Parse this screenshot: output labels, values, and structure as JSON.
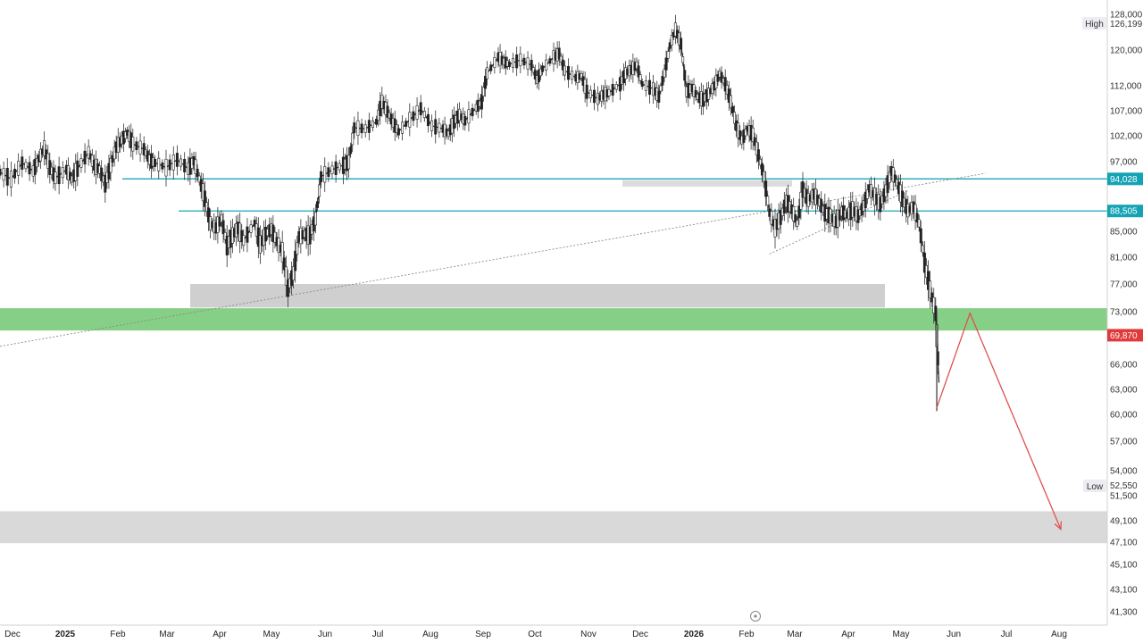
{
  "chart_data": {
    "type": "candlestick",
    "instrument_hint": "",
    "price_axis": {
      "ticks": [
        "128,000",
        "120,000",
        "112,000",
        "107,000",
        "102,000",
        "97,000",
        "85,000",
        "81,000",
        "77,000",
        "73,000",
        "66,000",
        "63,000",
        "60,000",
        "57,000",
        "54,000",
        "51,500",
        "49,100",
        "47,100",
        "45,100",
        "43,100",
        "41,300"
      ],
      "ylim": [
        40000,
        129000
      ]
    },
    "time_axis": {
      "ticks": [
        "Dec",
        "2025",
        "Feb",
        "Mar",
        "Apr",
        "May",
        "Jun",
        "Jul",
        "Aug",
        "Sep",
        "Oct",
        "Nov",
        "Dec",
        "2026",
        "Feb",
        "Mar",
        "Apr",
        "May",
        "Jun",
        "Jul",
        "Aug"
      ],
      "bold_ticks": [
        "2025",
        "2026"
      ]
    },
    "markers": {
      "high": {
        "label": "High",
        "value": "126,199"
      },
      "low": {
        "label": "Low",
        "value": "52,550"
      }
    },
    "price_tags": [
      {
        "value": "94,028",
        "color": "#14a3b5"
      },
      {
        "value": "88,505",
        "color": "#14a3b5"
      },
      {
        "value": "69,870",
        "color": "#e03a3a"
      }
    ],
    "horizontal_lines": [
      {
        "price": 94028,
        "color": "#1aa6b7"
      },
      {
        "price": 88505,
        "color": "#1aa6b7"
      }
    ],
    "zones": [
      {
        "name": "resistance zone (grey)",
        "from": 73600,
        "to": 77000,
        "color": "#cfcfcf"
      },
      {
        "name": "support zone (green)",
        "from": 70500,
        "to": 73500,
        "color": "#86cf86"
      },
      {
        "name": "target zone (grey)",
        "from": 47000,
        "to": 50000,
        "color": "#d9d9d9"
      },
      {
        "name": "small consolidation box",
        "from": 92700,
        "to": 93800,
        "color": "#dcdcdc"
      }
    ],
    "projection": {
      "color": "#e05050",
      "points": [
        [
          0.846,
          60800
        ],
        [
          0.876,
          72800
        ],
        [
          0.958,
          48300
        ]
      ]
    },
    "price_path": [
      [
        0.0,
        95200
      ],
      [
        0.01,
        94000
      ],
      [
        0.02,
        96800
      ],
      [
        0.03,
        95400
      ],
      [
        0.035,
        97600
      ],
      [
        0.04,
        99600
      ],
      [
        0.045,
        96000
      ],
      [
        0.05,
        94200
      ],
      [
        0.06,
        95600
      ],
      [
        0.065,
        94000
      ],
      [
        0.07,
        95800
      ],
      [
        0.08,
        98800
      ],
      [
        0.085,
        96400
      ],
      [
        0.09,
        95600
      ],
      [
        0.095,
        93200
      ],
      [
        0.1,
        96400
      ],
      [
        0.105,
        99800
      ],
      [
        0.11,
        101200
      ],
      [
        0.115,
        102600
      ],
      [
        0.12,
        100400
      ],
      [
        0.13,
        99400
      ],
      [
        0.135,
        97400
      ],
      [
        0.14,
        96800
      ],
      [
        0.15,
        96000
      ],
      [
        0.16,
        97400
      ],
      [
        0.17,
        95800
      ],
      [
        0.175,
        97200
      ],
      [
        0.18,
        94000
      ],
      [
        0.185,
        90600
      ],
      [
        0.19,
        86400
      ],
      [
        0.195,
        85600
      ],
      [
        0.2,
        87200
      ],
      [
        0.205,
        82800
      ],
      [
        0.21,
        84400
      ],
      [
        0.215,
        85600
      ],
      [
        0.22,
        83600
      ],
      [
        0.23,
        86400
      ],
      [
        0.235,
        83000
      ],
      [
        0.24,
        84600
      ],
      [
        0.245,
        85400
      ],
      [
        0.25,
        83400
      ],
      [
        0.255,
        81800
      ],
      [
        0.26,
        76400
      ],
      [
        0.265,
        78600
      ],
      [
        0.27,
        84200
      ],
      [
        0.275,
        84600
      ],
      [
        0.28,
        84400
      ],
      [
        0.285,
        87200
      ],
      [
        0.29,
        94400
      ],
      [
        0.3,
        95600
      ],
      [
        0.31,
        96400
      ],
      [
        0.315,
        97000
      ],
      [
        0.32,
        103600
      ],
      [
        0.33,
        103400
      ],
      [
        0.34,
        104800
      ],
      [
        0.345,
        108800
      ],
      [
        0.35,
        106800
      ],
      [
        0.355,
        104600
      ],
      [
        0.36,
        102800
      ],
      [
        0.37,
        105200
      ],
      [
        0.38,
        107400
      ],
      [
        0.39,
        104000
      ],
      [
        0.4,
        103400
      ],
      [
        0.405,
        102400
      ],
      [
        0.41,
        104800
      ],
      [
        0.415,
        106200
      ],
      [
        0.42,
        105000
      ],
      [
        0.43,
        107600
      ],
      [
        0.435,
        108800
      ],
      [
        0.44,
        114800
      ],
      [
        0.45,
        118400
      ],
      [
        0.455,
        117400
      ],
      [
        0.46,
        116800
      ],
      [
        0.47,
        117800
      ],
      [
        0.48,
        116600
      ],
      [
        0.485,
        113400
      ],
      [
        0.49,
        115800
      ],
      [
        0.5,
        118400
      ],
      [
        0.505,
        119200
      ],
      [
        0.51,
        115400
      ],
      [
        0.52,
        113800
      ],
      [
        0.525,
        114200
      ],
      [
        0.53,
        110800
      ],
      [
        0.54,
        109400
      ],
      [
        0.545,
        110200
      ],
      [
        0.55,
        110600
      ],
      [
        0.56,
        112400
      ],
      [
        0.565,
        114800
      ],
      [
        0.57,
        115600
      ],
      [
        0.575,
        116600
      ],
      [
        0.58,
        112400
      ],
      [
        0.59,
        111400
      ],
      [
        0.595,
        109800
      ],
      [
        0.6,
        114800
      ],
      [
        0.605,
        121000
      ],
      [
        0.61,
        124600
      ],
      [
        0.615,
        121400
      ],
      [
        0.62,
        110800
      ],
      [
        0.625,
        111600
      ],
      [
        0.63,
        109800
      ],
      [
        0.635,
        109200
      ],
      [
        0.64,
        110400
      ],
      [
        0.645,
        112000
      ],
      [
        0.65,
        114600
      ],
      [
        0.655,
        112400
      ],
      [
        0.66,
        108800
      ],
      [
        0.665,
        104000
      ],
      [
        0.67,
        101200
      ],
      [
        0.675,
        103400
      ],
      [
        0.68,
        102200
      ],
      [
        0.685,
        98200
      ],
      [
        0.69,
        94400
      ],
      [
        0.695,
        88200
      ],
      [
        0.7,
        85600
      ],
      [
        0.705,
        87400
      ],
      [
        0.71,
        90200
      ],
      [
        0.715,
        88800
      ],
      [
        0.72,
        86400
      ],
      [
        0.725,
        92200
      ],
      [
        0.73,
        90400
      ],
      [
        0.735,
        91400
      ],
      [
        0.74,
        90000
      ],
      [
        0.745,
        88200
      ],
      [
        0.75,
        87600
      ],
      [
        0.755,
        86600
      ],
      [
        0.76,
        88400
      ],
      [
        0.765,
        87800
      ],
      [
        0.77,
        88800
      ],
      [
        0.775,
        87600
      ],
      [
        0.78,
        89400
      ],
      [
        0.785,
        92400
      ],
      [
        0.79,
        91000
      ],
      [
        0.795,
        89600
      ],
      [
        0.8,
        92000
      ],
      [
        0.805,
        95400
      ],
      [
        0.81,
        93400
      ],
      [
        0.815,
        90600
      ],
      [
        0.82,
        88600
      ],
      [
        0.825,
        89200
      ],
      [
        0.83,
        86400
      ],
      [
        0.835,
        80200
      ],
      [
        0.84,
        76200
      ],
      [
        0.845,
        72800
      ],
      [
        0.848,
        63800
      ]
    ],
    "trendlines": [
      {
        "from": [
          0.0,
          68400
        ],
        "to": [
          0.89,
          95000
        ],
        "style": "dotted"
      },
      {
        "from": [
          0.695,
          81500
        ],
        "to": [
          0.82,
          92000
        ],
        "style": "dotted"
      }
    ]
  }
}
